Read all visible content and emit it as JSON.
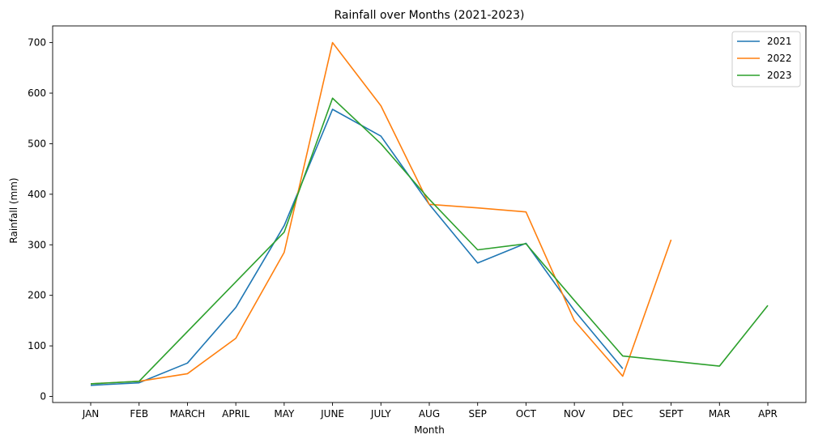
{
  "chart_data": {
    "type": "line",
    "title": "Rainfall over Months (2021-2023)",
    "xlabel": "Month",
    "ylabel": "Rainfall (mm)",
    "categories": [
      "JAN",
      "FEB",
      "MARCH",
      "APRIL",
      "MAY",
      "JUNE",
      "JULY",
      "AUG",
      "SEP",
      "OCT",
      "NOV",
      "DEC",
      "SEPT",
      "MAR",
      "APR"
    ],
    "yticks": [
      0,
      100,
      200,
      300,
      400,
      500,
      600,
      700
    ],
    "ylim": [
      -12,
      733
    ],
    "grid": false,
    "legend_position": "top-right",
    "series": [
      {
        "name": "2021",
        "color": "#1f77b4",
        "values": [
          22,
          27,
          66,
          176,
          338,
          568,
          515,
          380,
          264,
          303,
          170,
          55,
          null,
          null,
          null
        ]
      },
      {
        "name": "2022",
        "color": "#ff7f0e",
        "values": [
          25,
          30,
          45,
          115,
          285,
          700,
          575,
          380,
          373,
          365,
          150,
          40,
          310,
          null,
          null
        ]
      },
      {
        "name": "2023",
        "color": "#2ca02c",
        "values": [
          25,
          30,
          null,
          null,
          325,
          590,
          500,
          390,
          290,
          302,
          190,
          80,
          null,
          60,
          180
        ]
      }
    ]
  }
}
